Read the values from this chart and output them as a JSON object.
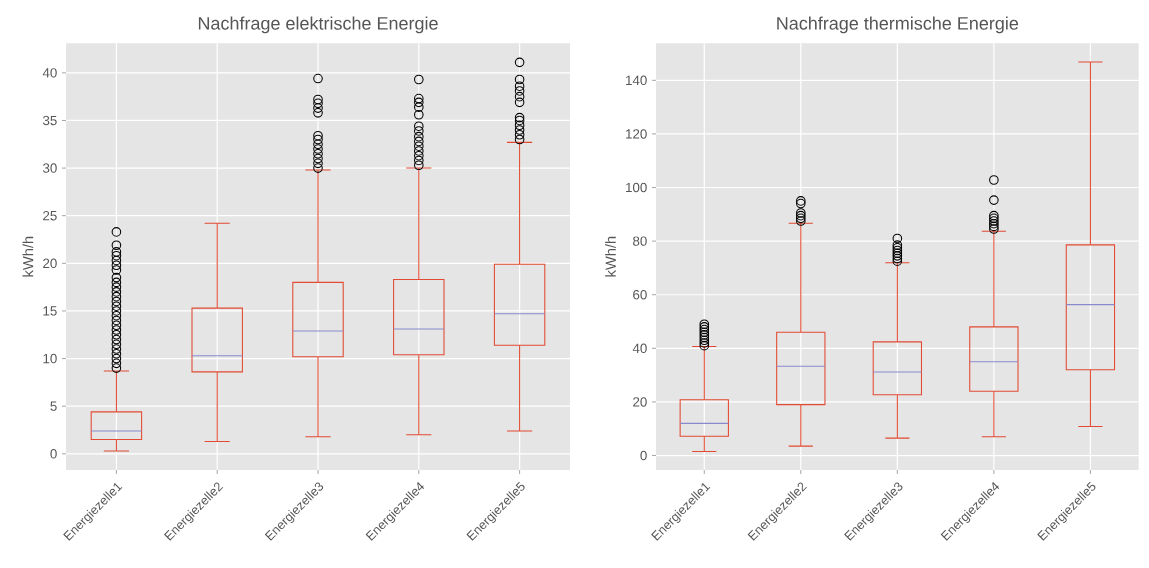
{
  "chart_data": [
    {
      "type": "box",
      "title": "Nachfrage elektrische Energie",
      "ylabel": "kWh/h",
      "categories": [
        "Energiezelle1",
        "Energiezelle2",
        "Energiezelle3",
        "Energiezelle4",
        "Energiezelle5"
      ],
      "ylim": [
        -1.7,
        43.1
      ],
      "yticks": [
        0,
        5,
        10,
        15,
        20,
        25,
        30,
        35,
        40
      ],
      "grid": true,
      "series": [
        {
          "color": "#e24a33",
          "boxes": [
            {
              "low": 0.3,
              "q1": 1.5,
              "median": 2.4,
              "q3": 4.4,
              "high": 8.7,
              "outliers": [
                9,
                9.5,
                10,
                10.5,
                11,
                11.5,
                12,
                12.5,
                13,
                13.5,
                14,
                14.5,
                15,
                15.5,
                16,
                16.5,
                17,
                17.5,
                18,
                18.5,
                19.3,
                19.8,
                20.3,
                20.8,
                21.2,
                21.9,
                23.3
              ]
            },
            {
              "low": 1.3,
              "q1": 8.6,
              "median": 10.3,
              "q3": 15.3,
              "high": 24.2
            },
            {
              "low": 1.8,
              "q1": 10.2,
              "median": 12.9,
              "q3": 18.0,
              "high": 29.8,
              "outliers": [
                30,
                30.5,
                31,
                31.5,
                32,
                32.5,
                33,
                33.4,
                35.8,
                36.3,
                36.8,
                37.2,
                39.4
              ]
            },
            {
              "low": 2.0,
              "q1": 10.4,
              "median": 13.1,
              "q3": 18.3,
              "high": 30.0,
              "outliers": [
                30.3,
                30.8,
                31.3,
                31.8,
                32.3,
                32.8,
                33.3,
                33.9,
                34.4,
                35.6,
                36.4,
                36.9,
                37.3,
                39.3
              ]
            },
            {
              "low": 2.4,
              "q1": 11.4,
              "median": 14.7,
              "q3": 19.9,
              "high": 32.7,
              "outliers": [
                33,
                33.5,
                34,
                34.5,
                35,
                35.3,
                36.9,
                37.5,
                38.1,
                38.6,
                39.3,
                41.1
              ]
            }
          ]
        }
      ]
    },
    {
      "type": "box",
      "title": "Nachfrage thermische Energie",
      "ylabel": "kWh/h",
      "categories": [
        "Energiezelle1",
        "Energiezelle2",
        "Energiezelle3",
        "Energiezelle4",
        "Energiezelle5"
      ],
      "ylim": [
        -5.4,
        153.8
      ],
      "yticks": [
        0,
        20,
        40,
        60,
        80,
        100,
        120,
        140
      ],
      "grid": true,
      "series": [
        {
          "color": "#e24a33",
          "boxes": [
            {
              "low": 1.5,
              "q1": 7.2,
              "median": 12,
              "q3": 20.8,
              "high": 40.7,
              "outliers": [
                41,
                42,
                43,
                44,
                45,
                46,
                47,
                48,
                49
              ]
            },
            {
              "low": 3.5,
              "q1": 19,
              "median": 33.3,
              "q3": 46,
              "high": 86.7,
              "outliers": [
                87.5,
                88.5,
                89.5,
                90.5,
                94,
                95
              ]
            },
            {
              "low": 6.5,
              "q1": 22.7,
              "median": 31.2,
              "q3": 42.4,
              "high": 71.9,
              "outliers": [
                72.5,
                73.5,
                74.5,
                75.5,
                76.5,
                77.5,
                78.5,
                81
              ]
            },
            {
              "low": 7,
              "q1": 24,
              "median": 35,
              "q3": 48,
              "high": 83.7,
              "outliers": [
                84.5,
                85.5,
                86.5,
                87.5,
                88.5,
                89.5,
                95.3,
                102.8
              ]
            },
            {
              "low": 10.8,
              "q1": 32,
              "median": 56.3,
              "q3": 78.6,
              "high": 146.8
            }
          ]
        }
      ]
    }
  ]
}
